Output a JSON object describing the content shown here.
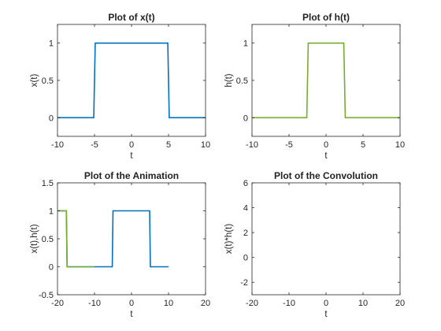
{
  "chart_data": [
    {
      "type": "line",
      "title": "Plot of x(t)",
      "xlabel": "t",
      "ylabel": "x(t)",
      "xlim": [
        -10,
        10
      ],
      "ylim": [
        -0.25,
        1.25
      ],
      "xticks": [
        -10,
        -5,
        0,
        5,
        10
      ],
      "yticks": [
        0,
        0.5,
        1
      ],
      "grid": false,
      "series": [
        {
          "color": "#0072BD",
          "x": [
            -10,
            -5.1,
            -4.9,
            4.9,
            5.1,
            10
          ],
          "y": [
            0,
            0,
            1,
            1,
            0,
            0
          ]
        }
      ]
    },
    {
      "type": "line",
      "title": "Plot of h(t)",
      "xlabel": "t",
      "ylabel": "h(t)",
      "xlim": [
        -10,
        10
      ],
      "ylim": [
        -0.25,
        1.25
      ],
      "xticks": [
        -10,
        -5,
        0,
        5,
        10
      ],
      "yticks": [
        0,
        0.5,
        1
      ],
      "grid": false,
      "series": [
        {
          "color": "#77AC30",
          "x": [
            -10,
            -2.6,
            -2.4,
            2.4,
            2.6,
            10
          ],
          "y": [
            0,
            0,
            1,
            1,
            0,
            0
          ]
        }
      ]
    },
    {
      "type": "line",
      "title": "Plot of the Animation",
      "xlabel": "t",
      "ylabel": "x(t),h(t)",
      "xlim": [
        -20,
        20
      ],
      "ylim": [
        -0.5,
        1.5
      ],
      "xticks": [
        -20,
        -10,
        0,
        10,
        20
      ],
      "yticks": [
        -0.5,
        0,
        0.5,
        1,
        1.5
      ],
      "grid": false,
      "series": [
        {
          "color": "#0072BD",
          "x": [
            -20,
            -17.6,
            -17.4,
            -5.2,
            -5.0,
            4.9,
            5.1,
            10
          ],
          "y": [
            1,
            1,
            0,
            0,
            1,
            1,
            0,
            0
          ]
        },
        {
          "color": "#77AC30",
          "x": [
            -20,
            -17.6,
            -17.4,
            -10
          ],
          "y": [
            1,
            1,
            0,
            0
          ]
        }
      ]
    },
    {
      "type": "line",
      "title": "Plot of the Convolution",
      "xlabel": "t",
      "ylabel": "x(t)*h(t)",
      "xlim": [
        -20,
        20
      ],
      "ylim": [
        -3,
        6
      ],
      "xticks": [
        -20,
        -10,
        0,
        10,
        20
      ],
      "yticks": [
        -2,
        0,
        2,
        4,
        6
      ],
      "grid": false,
      "series": []
    }
  ]
}
